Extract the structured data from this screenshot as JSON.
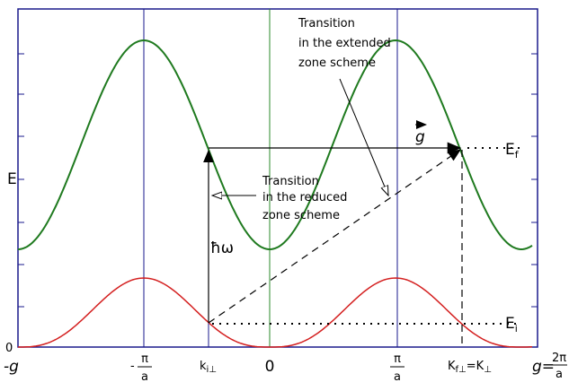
{
  "axis": {
    "y_label": "E",
    "y_origin": "0"
  },
  "x_labels": {
    "minus_g": "-g",
    "minus_pi_a": {
      "sign": "-",
      "numerator": "π",
      "denominator": "a"
    },
    "k_i": {
      "text": "k",
      "subscript": "i⊥"
    },
    "zero": "0",
    "pi_a": {
      "numerator": "π",
      "denominator": "a"
    },
    "k_f": {
      "text": "K",
      "subscript": "f⊥",
      "equals": "=K",
      "subscript2": "⊥"
    },
    "g": {
      "text": "g=",
      "numerator": "2π",
      "denominator": "a"
    }
  },
  "levels": {
    "final": {
      "text": "E",
      "subscript": "f"
    },
    "initial": {
      "text": "E",
      "subscript": "i"
    }
  },
  "annotations": {
    "extended": [
      "Transition",
      "in the extended",
      "zone scheme"
    ],
    "reduced": [
      "Transition",
      "in the reduced",
      "zone scheme"
    ],
    "photon": "ħω",
    "vector": "g"
  }
}
